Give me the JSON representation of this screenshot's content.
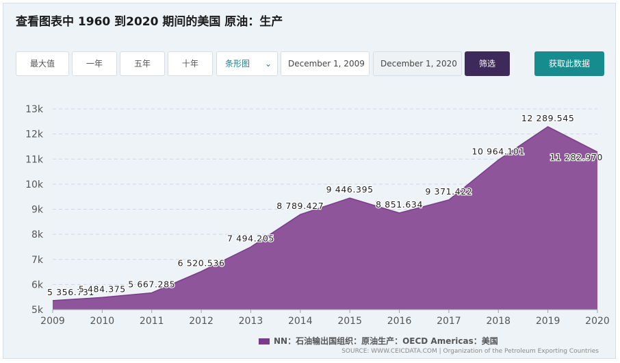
{
  "title": "查看图表中 1960 到2020 期间的美国 原油：生产",
  "toolbar": {
    "btn_max": "最大值",
    "btn_1y": "一年",
    "btn_5y": "五年",
    "btn_10y": "十年",
    "chart_type": "条形图",
    "date_from": "December 1, 2009",
    "date_to": "December 1, 2020",
    "filter": "筛选",
    "get_data": "获取此数据"
  },
  "colors": {
    "area_fill": "#8e559b",
    "area_line": "#7a3b8c",
    "grid": "#d0d7de",
    "filter_button": "#3e2a5a",
    "data_button": "#168c8f"
  },
  "legend": "NN：石油输出国组织：原油生产：OECD Americas：美国",
  "source": "SOURCE: WWW.CEICDATA.COM | Organization of the Petroleum Exporting Countries",
  "chart_data": {
    "type": "area",
    "x": [
      "2009",
      "2010",
      "2011",
      "2012",
      "2013",
      "2014",
      "2015",
      "2016",
      "2017",
      "2018",
      "2019",
      "2020"
    ],
    "series": [
      {
        "name": "NN：石油输出国组织：原油生产：OECD Americas：美国",
        "values": [
          5356.731,
          5484.375,
          5667.285,
          6520.536,
          7494.205,
          8789.427,
          9446.395,
          8851.634,
          9371.422,
          10964.101,
          12289.545,
          11282.97
        ],
        "labels": [
          "5 356.731",
          "5 484.375",
          "5 667.285",
          "6 520.536",
          "7 494.205",
          "8 789.427",
          "9 446.395",
          "8 851.634",
          "9 371.422",
          "10 964.101",
          "12 289.545",
          "11 282.970"
        ]
      }
    ],
    "ylim": [
      5000,
      13000
    ],
    "yticks": [
      5000,
      6000,
      7000,
      8000,
      9000,
      10000,
      11000,
      12000,
      13000
    ],
    "ytick_labels": [
      "5k",
      "6k",
      "7k",
      "8k",
      "9k",
      "10k",
      "11k",
      "12k",
      "13k"
    ],
    "grid": true,
    "legend_position": "bottom"
  }
}
